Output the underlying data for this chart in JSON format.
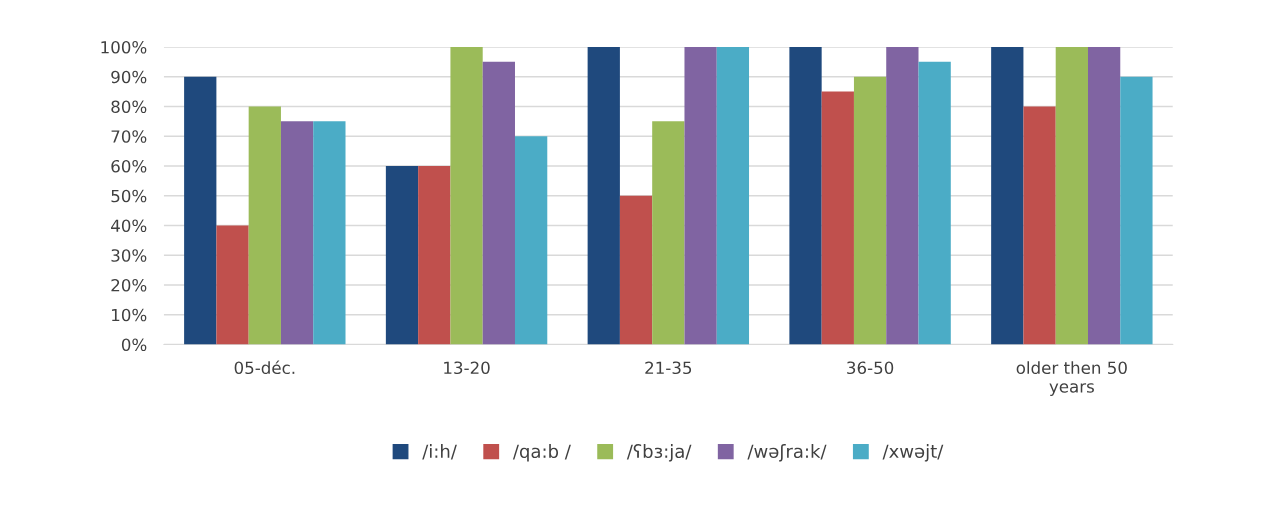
{
  "chart_data": {
    "type": "bar",
    "categories": [
      "05-déc.",
      "13-20",
      "21-35",
      "36-50",
      "older then 50\nyears"
    ],
    "series": [
      {
        "name": "/i:h/",
        "color": "#1f497d",
        "values": [
          90,
          60,
          100,
          100,
          100
        ]
      },
      {
        "name": "/qa:b /",
        "color": "#c0504d",
        "values": [
          40,
          60,
          50,
          85,
          80
        ]
      },
      {
        "name": "/ʕbɜ:ja/",
        "color": "#9bbb59",
        "values": [
          80,
          100,
          75,
          90,
          100
        ]
      },
      {
        "name": "/wəʃra:k/",
        "color": "#8064a2",
        "values": [
          75,
          95,
          100,
          100,
          100
        ]
      },
      {
        "name": "/xwəjt/",
        "color": "#4bacc6",
        "values": [
          75,
          70,
          100,
          95,
          90
        ]
      }
    ],
    "ylim": [
      0,
      100
    ],
    "yticks": [
      {
        "value": 0,
        "label": "0%"
      },
      {
        "value": 10,
        "label": "10%"
      },
      {
        "value": 20,
        "label": "20%"
      },
      {
        "value": 30,
        "label": "30%"
      },
      {
        "value": 40,
        "label": "40%"
      },
      {
        "value": 50,
        "label": "50%"
      },
      {
        "value": 60,
        "label": "60%"
      },
      {
        "value": 70,
        "label": "70%"
      },
      {
        "value": 80,
        "label": "80%"
      },
      {
        "value": 90,
        "label": "90%"
      },
      {
        "value": 100,
        "label": "100%"
      }
    ],
    "grid": "y",
    "legend": "bottom"
  }
}
